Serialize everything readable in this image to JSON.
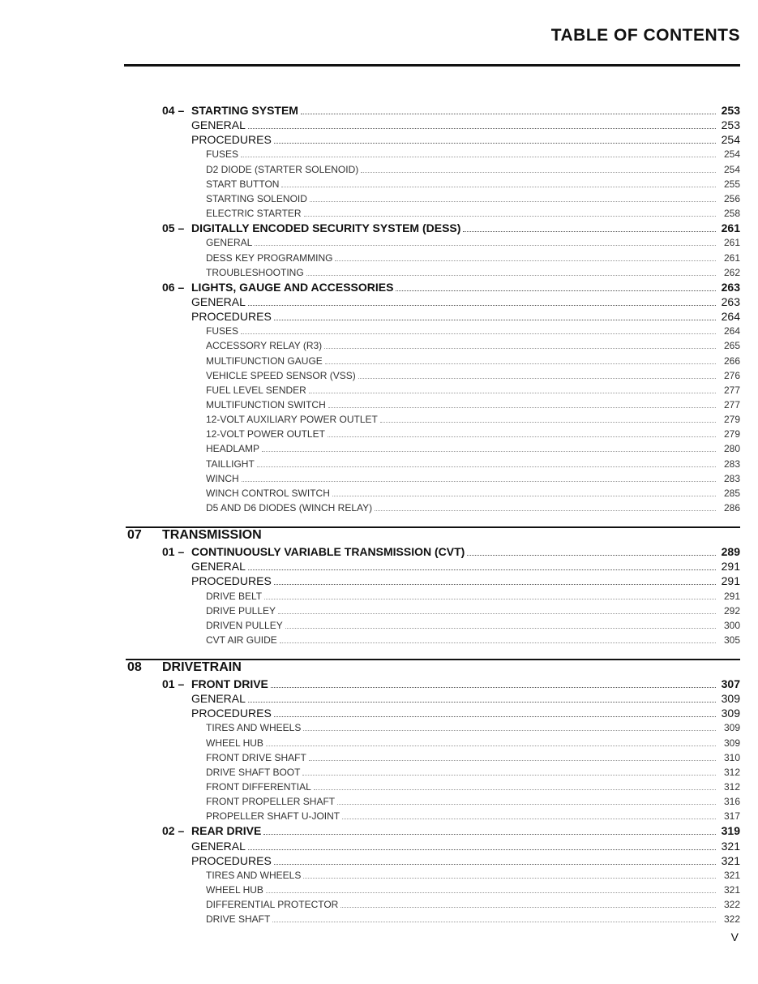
{
  "header": {
    "title": "TABLE OF CONTENTS"
  },
  "entries": [
    {
      "level": 1,
      "number": "04 –",
      "title": "STARTING SYSTEM",
      "page": 253
    },
    {
      "level": 2,
      "title": "GENERAL",
      "page": 253
    },
    {
      "level": 2,
      "title": "PROCEDURES",
      "page": 254
    },
    {
      "level": 3,
      "title": "FUSES",
      "page": 254
    },
    {
      "level": 3,
      "title": "D2 DIODE (STARTER SOLENOID)",
      "page": 254
    },
    {
      "level": 3,
      "title": "START BUTTON",
      "page": 255
    },
    {
      "level": 3,
      "title": "STARTING SOLENOID",
      "page": 256
    },
    {
      "level": 3,
      "title": "ELECTRIC STARTER",
      "page": 258
    },
    {
      "level": 1,
      "number": "05 –",
      "title": "DIGITALLY ENCODED SECURITY SYSTEM (DESS)",
      "page": 261
    },
    {
      "level": 3,
      "title": "GENERAL",
      "page": 261
    },
    {
      "level": 3,
      "title": "DESS KEY PROGRAMMING",
      "page": 261
    },
    {
      "level": 3,
      "title": "TROUBLESHOOTING",
      "page": 262
    },
    {
      "level": 1,
      "number": "06 –",
      "title": "LIGHTS, GAUGE AND ACCESSORIES",
      "page": 263
    },
    {
      "level": 2,
      "title": "GENERAL",
      "page": 263
    },
    {
      "level": 2,
      "title": "PROCEDURES",
      "page": 264
    },
    {
      "level": 3,
      "title": "FUSES",
      "page": 264
    },
    {
      "level": 3,
      "title": "ACCESSORY RELAY (R3)",
      "page": 265
    },
    {
      "level": 3,
      "title": "MULTIFUNCTION GAUGE",
      "page": 266
    },
    {
      "level": 3,
      "title": "VEHICLE SPEED SENSOR (VSS)",
      "page": 276
    },
    {
      "level": 3,
      "title": "FUEL LEVEL SENDER",
      "page": 277
    },
    {
      "level": 3,
      "title": "MULTIFUNCTION SWITCH",
      "page": 277
    },
    {
      "level": 3,
      "title": "12-VOLT AUXILIARY POWER OUTLET",
      "page": 279
    },
    {
      "level": 3,
      "title": "12-VOLT POWER OUTLET",
      "page": 279
    },
    {
      "level": 3,
      "title": "HEADLAMP",
      "page": 280
    },
    {
      "level": 3,
      "title": "TAILLIGHT",
      "page": 283
    },
    {
      "level": 3,
      "title": "WINCH",
      "page": 283
    },
    {
      "level": 3,
      "title": "WINCH CONTROL SWITCH",
      "page": 285
    },
    {
      "level": 3,
      "title": "D5 AND D6 DIODES (WINCH RELAY)",
      "page": 286
    },
    {
      "section": true,
      "number": "07",
      "title": "TRANSMISSION"
    },
    {
      "level": 1,
      "number": "01 –",
      "title": "CONTINUOUSLY VARIABLE TRANSMISSION (CVT)",
      "page": 289
    },
    {
      "level": 2,
      "title": "GENERAL",
      "page": 291
    },
    {
      "level": 2,
      "title": "PROCEDURES",
      "page": 291
    },
    {
      "level": 3,
      "title": "DRIVE BELT",
      "page": 291
    },
    {
      "level": 3,
      "title": "DRIVE PULLEY",
      "page": 292
    },
    {
      "level": 3,
      "title": "DRIVEN PULLEY",
      "page": 300
    },
    {
      "level": 3,
      "title": "CVT AIR GUIDE",
      "page": 305
    },
    {
      "section": true,
      "number": "08",
      "title": "DRIVETRAIN"
    },
    {
      "level": 1,
      "number": "01 –",
      "title": "FRONT DRIVE",
      "page": 307
    },
    {
      "level": 2,
      "title": "GENERAL",
      "page": 309
    },
    {
      "level": 2,
      "title": "PROCEDURES",
      "page": 309
    },
    {
      "level": 3,
      "title": "TIRES AND WHEELS",
      "page": 309
    },
    {
      "level": 3,
      "title": "WHEEL HUB",
      "page": 309
    },
    {
      "level": 3,
      "title": "FRONT DRIVE SHAFT",
      "page": 310
    },
    {
      "level": 3,
      "title": "DRIVE SHAFT BOOT",
      "page": 312
    },
    {
      "level": 3,
      "title": "FRONT DIFFERENTIAL",
      "page": 312
    },
    {
      "level": 3,
      "title": "FRONT PROPELLER SHAFT",
      "page": 316
    },
    {
      "level": 3,
      "title": "PROPELLER SHAFT U-JOINT",
      "page": 317
    },
    {
      "level": 1,
      "number": "02 –",
      "title": "REAR DRIVE",
      "page": 319
    },
    {
      "level": 2,
      "title": "GENERAL",
      "page": 321
    },
    {
      "level": 2,
      "title": "PROCEDURES",
      "page": 321
    },
    {
      "level": 3,
      "title": "TIRES AND WHEELS",
      "page": 321
    },
    {
      "level": 3,
      "title": "WHEEL HUB",
      "page": 321
    },
    {
      "level": 3,
      "title": "DIFFERENTIAL PROTECTOR",
      "page": 322
    },
    {
      "level": 3,
      "title": "DRIVE SHAFT",
      "page": 322
    }
  ],
  "footer": {
    "page": "V"
  }
}
